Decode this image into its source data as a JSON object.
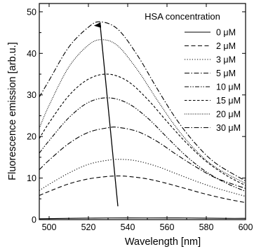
{
  "chart_data": {
    "type": "line",
    "xlabel": "Wavelength [nm]",
    "ylabel": "Fluorescence emission [arb.u.]",
    "xlim": [
      495,
      600
    ],
    "ylim": [
      0,
      52
    ],
    "xticks": [
      500,
      520,
      540,
      560,
      580,
      600
    ],
    "yticks": [
      0,
      10,
      20,
      30,
      40,
      50
    ],
    "grid": false,
    "legend": {
      "title": "HSA concentration",
      "placement": "top-right"
    },
    "annotations": [
      {
        "type": "arrow",
        "from": [
          535,
          3.2
        ],
        "to": [
          526,
          46.8
        ]
      }
    ],
    "series": [
      {
        "name": "0 μM",
        "dash": "solid",
        "x": [
          495,
          510,
          530,
          550,
          570,
          590,
          600
        ],
        "y": [
          0.2,
          0.3,
          0.4,
          0.4,
          0.4,
          0.3,
          0.3
        ]
      },
      {
        "name": "2 μM",
        "dash": "dashed",
        "x": [
          495,
          500,
          510,
          520,
          530,
          535,
          540,
          550,
          560,
          570,
          580,
          590,
          600
        ],
        "y": [
          5.8,
          6.8,
          8.6,
          9.8,
          10.4,
          10.5,
          10.4,
          9.8,
          8.7,
          7.4,
          6.1,
          5.0,
          4.1
        ]
      },
      {
        "name": "3 μM",
        "dash": "dotted",
        "x": [
          495,
          500,
          510,
          520,
          530,
          537,
          545,
          555,
          565,
          575,
          585,
          600
        ],
        "y": [
          7.0,
          8.5,
          11.2,
          13.3,
          14.3,
          14.5,
          14.1,
          12.8,
          11.0,
          9.2,
          7.6,
          5.6
        ]
      },
      {
        "name": "5 μM",
        "dash": "dashdot",
        "x": [
          495,
          500,
          510,
          520,
          530,
          535,
          545,
          555,
          565,
          575,
          585,
          600
        ],
        "y": [
          12.0,
          14.3,
          18.3,
          21.0,
          22.1,
          22.2,
          21.2,
          18.8,
          15.6,
          12.6,
          10.0,
          7.5
        ]
      },
      {
        "name": "10 μM",
        "dash": "dashdotdot",
        "x": [
          495,
          500,
          510,
          520,
          530,
          540,
          550,
          560,
          570,
          580,
          590,
          600
        ],
        "y": [
          16.0,
          19.0,
          24.5,
          28.2,
          29.3,
          28.0,
          24.5,
          19.8,
          15.2,
          11.5,
          8.8,
          6.8
        ]
      },
      {
        "name": "15 μM",
        "dash": "shortdash",
        "x": [
          495,
          500,
          510,
          520,
          530,
          540,
          550,
          560,
          570,
          580,
          590,
          600
        ],
        "y": [
          19.5,
          23.3,
          29.8,
          33.8,
          35.0,
          33.3,
          29.0,
          23.6,
          18.4,
          14.0,
          10.7,
          8.2
        ]
      },
      {
        "name": "20 μM",
        "dash": "densedot",
        "x": [
          495,
          500,
          510,
          520,
          527,
          535,
          545,
          555,
          565,
          575,
          585,
          600
        ],
        "y": [
          22.0,
          27.5,
          36.7,
          42.0,
          43.3,
          41.8,
          36.0,
          28.8,
          22.0,
          16.5,
          12.5,
          8.7
        ]
      },
      {
        "name": "30 μM",
        "dash": "dashdot",
        "x": [
          495,
          500,
          510,
          520,
          526,
          535,
          545,
          555,
          565,
          575,
          585,
          600
        ],
        "y": [
          29.5,
          33.5,
          41.5,
          46.3,
          47.6,
          45.8,
          39.5,
          31.5,
          24.0,
          18.0,
          13.5,
          9.3
        ]
      }
    ]
  }
}
